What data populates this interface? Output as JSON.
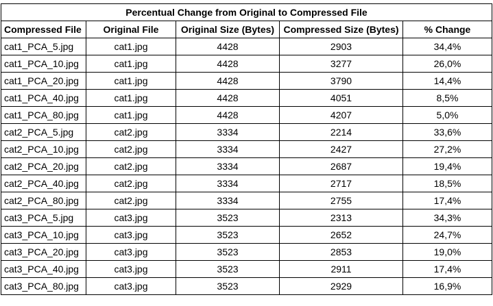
{
  "table": {
    "title": "Percentual Change from Original to Compressed File",
    "headers": [
      "Compressed File",
      "Original File",
      "Original Size (Bytes)",
      "Compressed Size (Bytes)",
      "%  Change"
    ],
    "rows": [
      [
        "cat1_PCA_5.jpg",
        "cat1.jpg",
        "4428",
        "2903",
        "34,4%"
      ],
      [
        "cat1_PCA_10.jpg",
        "cat1.jpg",
        "4428",
        "3277",
        "26,0%"
      ],
      [
        "cat1_PCA_20.jpg",
        "cat1.jpg",
        "4428",
        "3790",
        "14,4%"
      ],
      [
        "cat1_PCA_40.jpg",
        "cat1.jpg",
        "4428",
        "4051",
        "8,5%"
      ],
      [
        "cat1_PCA_80.jpg",
        "cat1.jpg",
        "4428",
        "4207",
        "5,0%"
      ],
      [
        "cat2_PCA_5.jpg",
        "cat2.jpg",
        "3334",
        "2214",
        "33,6%"
      ],
      [
        "cat2_PCA_10.jpg",
        "cat2.jpg",
        "3334",
        "2427",
        "27,2%"
      ],
      [
        "cat2_PCA_20.jpg",
        "cat2.jpg",
        "3334",
        "2687",
        "19,4%"
      ],
      [
        "cat2_PCA_40.jpg",
        "cat2.jpg",
        "3334",
        "2717",
        "18,5%"
      ],
      [
        "cat2_PCA_80.jpg",
        "cat2.jpg",
        "3334",
        "2755",
        "17,4%"
      ],
      [
        "cat3_PCA_5.jpg",
        "cat3.jpg",
        "3523",
        "2313",
        "34,3%"
      ],
      [
        "cat3_PCA_10.jpg",
        "cat3.jpg",
        "3523",
        "2652",
        "24,7%"
      ],
      [
        "cat3_PCA_20.jpg",
        "cat3.jpg",
        "3523",
        "2853",
        "19,0%"
      ],
      [
        "cat3_PCA_40.jpg",
        "cat3.jpg",
        "3523",
        "2911",
        "17,4%"
      ],
      [
        "cat3_PCA_80.jpg",
        "cat3.jpg",
        "3523",
        "2929",
        "16,9%"
      ]
    ]
  }
}
